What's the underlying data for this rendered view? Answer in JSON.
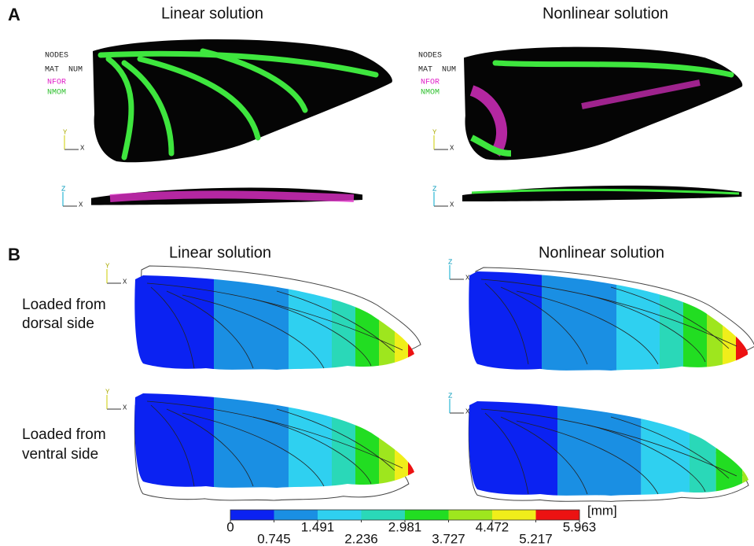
{
  "panel_a": {
    "label": "A",
    "titles": [
      "Linear solution",
      "Nonlinear solution"
    ],
    "legend": [
      "NODES",
      "MAT  NUM",
      "NFOR",
      "NMOM"
    ]
  },
  "panel_b": {
    "label": "B",
    "titles": [
      "Linear solution",
      "Nonlinear solution"
    ],
    "rows": [
      [
        "Loaded from",
        "dorsal side"
      ],
      [
        "Loaded from",
        "ventral side"
      ]
    ]
  },
  "axes": {
    "x": "X",
    "y": "Y",
    "z": "Z"
  },
  "colorbar": {
    "unit": "[mm]",
    "ticks": [
      0,
      0.745,
      1.491,
      2.236,
      2.981,
      3.727,
      4.472,
      5.217,
      5.963
    ],
    "colors": [
      "#0b22f2",
      "#1a8fe3",
      "#2fd0f0",
      "#2ad8b8",
      "#22dd22",
      "#9ee61e",
      "#f0ee1a",
      "#ec1212"
    ]
  }
}
